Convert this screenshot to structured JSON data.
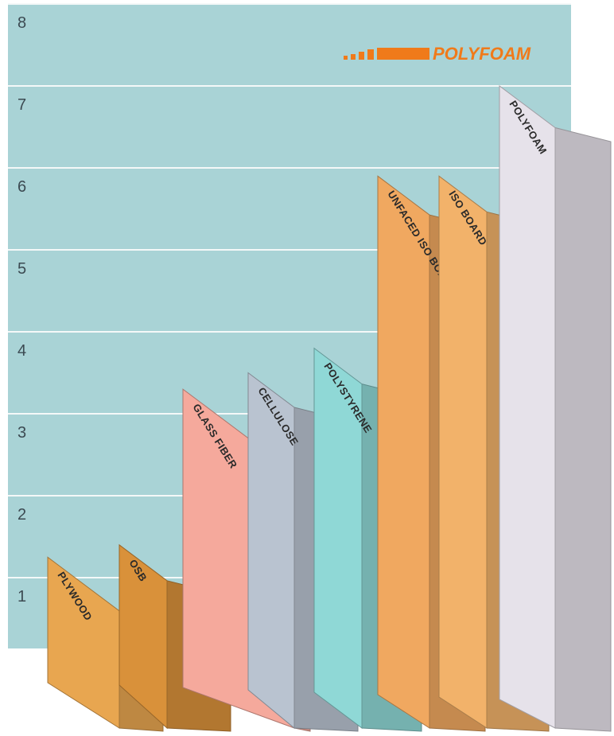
{
  "chart_data": {
    "type": "bar",
    "logo": "POLYFOAM",
    "categories": [
      "PLYWOOD",
      "OSB",
      "GLASS FIBER",
      "CELLULOSE",
      "POLYSTYRENE",
      "UNFACED ISO BOARD",
      "ISO BOARD",
      "POLYFOAM"
    ],
    "values": [
      1.25,
      1.4,
      3.3,
      3.5,
      3.8,
      5.9,
      5.9,
      7.0
    ],
    "colors": [
      "#e8a650",
      "#d9913a",
      "#f5a99c",
      "#b9c3d0",
      "#8fd8d6",
      "#f0a860",
      "#f2b26a",
      "#e6e2ea"
    ],
    "ylim": [
      0,
      8
    ],
    "yticks": [
      1,
      2,
      3,
      4,
      5,
      6,
      7,
      8
    ],
    "grid": true
  }
}
